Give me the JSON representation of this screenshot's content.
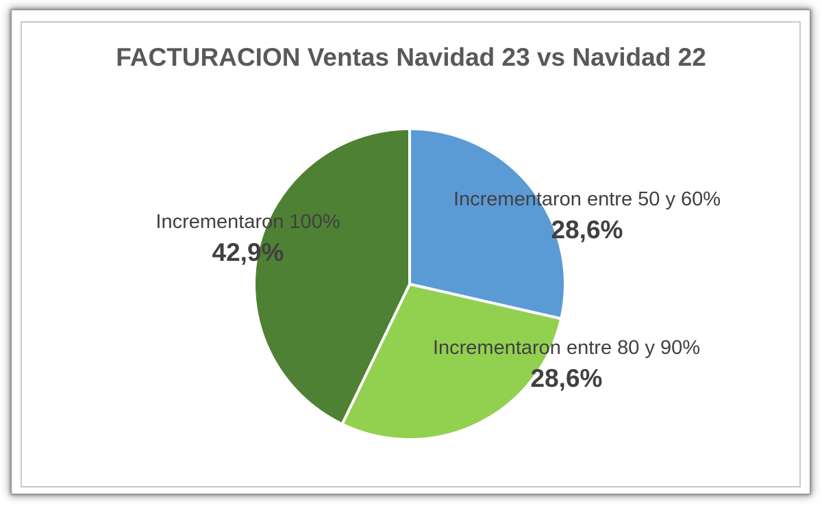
{
  "title": "FACTURACION Ventas Navidad 23 vs Navidad 22",
  "chart_data": {
    "type": "pie",
    "title": "FACTURACION Ventas Navidad 23 vs Navidad 22",
    "start_angle_deg": 0,
    "direction": "clockwise",
    "legend": "none",
    "slices": [
      {
        "label": "Incrementaron entre 50 y 60%",
        "value": 28.6,
        "display_value": "28,6%",
        "color": "#5B9BD5"
      },
      {
        "label": "Incrementaron entre 80 y 90%",
        "value": 28.6,
        "display_value": "28,6%",
        "color": "#92D050"
      },
      {
        "label": "Incrementaron 100%",
        "value": 42.9,
        "display_value": "42,9%",
        "color": "#4F8134"
      }
    ],
    "separator_color": "#FFFFFF",
    "label_color": "#404040",
    "title_color": "#595959"
  }
}
